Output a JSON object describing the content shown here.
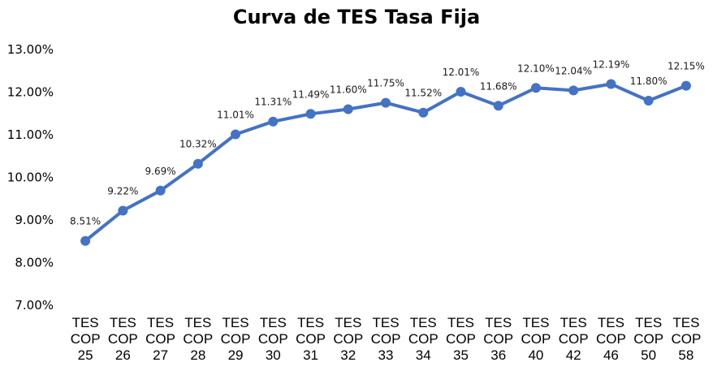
{
  "chart_data": {
    "type": "line",
    "title": "Curva de TES Tasa Fija",
    "xlabel": "",
    "ylabel": "",
    "categories": [
      [
        "TES",
        "COP",
        "25"
      ],
      [
        "TES",
        "COP",
        "26"
      ],
      [
        "TES",
        "COP",
        "27"
      ],
      [
        "TES",
        "COP",
        "28"
      ],
      [
        "TES",
        "COP",
        "29"
      ],
      [
        "TES",
        "COP",
        "30"
      ],
      [
        "TES",
        "COP",
        "31"
      ],
      [
        "TES",
        "COP",
        "32"
      ],
      [
        "TES",
        "COP",
        "33"
      ],
      [
        "TES",
        "COP",
        "34"
      ],
      [
        "TES",
        "COP",
        "35"
      ],
      [
        "TES",
        "COP",
        "36"
      ],
      [
        "TES",
        "COP",
        "40"
      ],
      [
        "TES",
        "COP",
        "42"
      ],
      [
        "TES",
        "COP",
        "46"
      ],
      [
        "TES",
        "COP",
        "50"
      ],
      [
        "TES",
        "COP",
        "58"
      ]
    ],
    "series": [
      {
        "values": [
          8.51,
          9.22,
          9.69,
          10.32,
          11.01,
          11.31,
          11.49,
          11.6,
          11.75,
          11.52,
          12.01,
          11.68,
          12.1,
          12.04,
          12.19,
          11.8,
          12.15
        ],
        "labels": [
          "8.51%",
          "9.22%",
          "9.69%",
          "10.32%",
          "11.01%",
          "11.31%",
          "11.49%",
          "11.60%",
          "11.75%",
          "11.52%",
          "12.01%",
          "11.68%",
          "12.10%",
          "12.04%",
          "12.19%",
          "11.80%",
          "12.15%"
        ],
        "color": "#4472C4"
      }
    ],
    "ylim": [
      7.0,
      13.0
    ],
    "yticks": [
      "7.00%",
      "8.00%",
      "9.00%",
      "10.00%",
      "11.00%",
      "12.00%",
      "13.00%"
    ],
    "grid": false,
    "legend": "none"
  }
}
